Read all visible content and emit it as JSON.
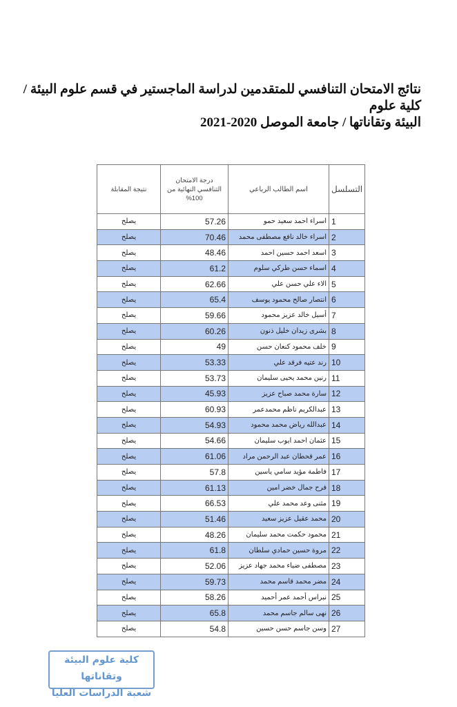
{
  "title": {
    "line1": "نتائج الامتحان التنافسي للمتقدمين لدراسة الماجستير في قسم علوم البيئة / كلية علوم",
    "line2": "البيئة وتقاناتها / جامعة الموصل  2020-2021"
  },
  "table": {
    "headers": {
      "serial": "التسلسل",
      "name": "اسم الطالب الرباعي",
      "score": "درجة الامتحان التنافسي النهائية من 100%",
      "result": "نتيجة المقابلة"
    },
    "highlight_color": "#b8cdf2",
    "rows": [
      {
        "serial": "1",
        "name": "اسراء احمد سعيد حمو",
        "score": "57.26",
        "result": "يصلح"
      },
      {
        "serial": "2",
        "name": "اسراء خالد نافع مصطفى محمد",
        "score": "70.46",
        "result": "يصلح"
      },
      {
        "serial": "3",
        "name": "اسعد احمد حسين احمد",
        "score": "48.46",
        "result": "يصلح"
      },
      {
        "serial": "4",
        "name": "اسماء حسن طركي سلوم",
        "score": "61.2",
        "result": "يصلح"
      },
      {
        "serial": "5",
        "name": "الاء علي حسن علي",
        "score": "62.66",
        "result": "يصلح"
      },
      {
        "serial": "6",
        "name": "انتصار صالح محمود يوسف",
        "score": "65.4",
        "result": "يصلح"
      },
      {
        "serial": "7",
        "name": "أسيل خالد عزيز محمود",
        "score": "59.66",
        "result": "يصلح"
      },
      {
        "serial": "8",
        "name": "بشرى زيدان خليل ذنون",
        "score": "60.26",
        "result": "يصلح"
      },
      {
        "serial": "9",
        "name": "خلف محمود كنعان حسن",
        "score": "49",
        "result": "يصلح"
      },
      {
        "serial": "10",
        "name": "رند عتيه فرقد علي",
        "score": "53.33",
        "result": "يصلح"
      },
      {
        "serial": "11",
        "name": "رنين محمد يحيى سليمان",
        "score": "53.73",
        "result": "يصلح"
      },
      {
        "serial": "12",
        "name": "سارة محمد صباح عزيز",
        "score": "45.93",
        "result": "يصلح"
      },
      {
        "serial": "13",
        "name": "عبدالكريم ناظم محمدعمر",
        "score": "60.93",
        "result": "يصلح"
      },
      {
        "serial": "14",
        "name": "عبدالله رياض محمد محمود",
        "score": "54.93",
        "result": "يصلح"
      },
      {
        "serial": "15",
        "name": "عثمان احمد ايوب سليمان",
        "score": "54.66",
        "result": "يصلح"
      },
      {
        "serial": "16",
        "name": "عمر قحطان عبد الرحمن مراد",
        "score": "61.06",
        "result": "يصلح"
      },
      {
        "serial": "17",
        "name": "فاطمة مؤيد سامي ياسين",
        "score": "57.8",
        "result": "يصلح"
      },
      {
        "serial": "18",
        "name": "فرح جمال خضر امين",
        "score": "61.13",
        "result": "يصلح"
      },
      {
        "serial": "19",
        "name": "مثنى وعد محمد علي",
        "score": "66.53",
        "result": "يصلح"
      },
      {
        "serial": "20",
        "name": "محمد عقيل عزيز سعيد",
        "score": "51.46",
        "result": "يصلح"
      },
      {
        "serial": "21",
        "name": "محمود حكمت محمد سليمان",
        "score": "48.26",
        "result": "يصلح"
      },
      {
        "serial": "22",
        "name": "مروة حسين حمادي سلطان",
        "score": "61.8",
        "result": "يصلح"
      },
      {
        "serial": "23",
        "name": "مصطفى ضياء محمد جهاد عزيز",
        "score": "52.06",
        "result": "يصلح"
      },
      {
        "serial": "24",
        "name": "مضر محمد قاسم محمد",
        "score": "59.73",
        "result": "يصلح"
      },
      {
        "serial": "25",
        "name": "نبراس أحمد عمر أحميد",
        "score": "58.26",
        "result": "يصلح"
      },
      {
        "serial": "26",
        "name": "نهى سالم جاسم محمد",
        "score": "65.8",
        "result": "يصلح"
      },
      {
        "serial": "27",
        "name": "وسن جاسم حسن حسين",
        "score": "54.8",
        "result": "يصلح"
      }
    ]
  },
  "stamp": {
    "line1": "كلية علوم البيئة وتقاناتها",
    "line2": "شعبة الدراسات العليا",
    "color": "#4a86c6"
  }
}
